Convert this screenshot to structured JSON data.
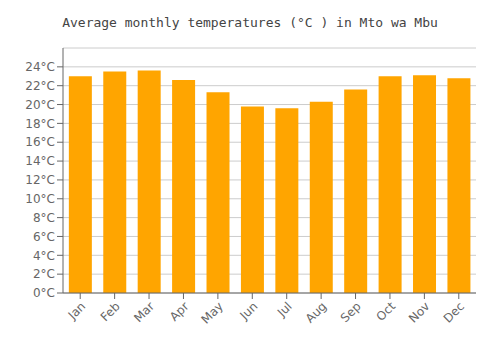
{
  "chart_data": {
    "type": "bar",
    "title": "Average monthly temperatures (°C ) in Mto wa Mbu",
    "categories": [
      "Jan",
      "Feb",
      "Mar",
      "Apr",
      "May",
      "Jun",
      "Jul",
      "Aug",
      "Sep",
      "Oct",
      "Nov",
      "Dec"
    ],
    "values": [
      23.0,
      23.5,
      23.6,
      22.6,
      21.3,
      19.8,
      19.6,
      20.3,
      21.6,
      23.0,
      23.1,
      22.8
    ],
    "color": "#FFA500",
    "ylim": [
      0,
      26
    ],
    "yticks": [
      {
        "value": 0,
        "label": "0°C"
      },
      {
        "value": 2,
        "label": "2°C"
      },
      {
        "value": 4,
        "label": "4°C"
      },
      {
        "value": 6,
        "label": "6°C"
      },
      {
        "value": 8,
        "label": "8°C"
      },
      {
        "value": 10,
        "label": "10°C"
      },
      {
        "value": 12,
        "label": "12°C"
      },
      {
        "value": 14,
        "label": "14°C"
      },
      {
        "value": 16,
        "label": "16°C"
      },
      {
        "value": 18,
        "label": "18°C"
      },
      {
        "value": 20,
        "label": "20°C"
      },
      {
        "value": 22,
        "label": "22°C"
      },
      {
        "value": 24,
        "label": "24°C"
      }
    ],
    "grid": true
  }
}
